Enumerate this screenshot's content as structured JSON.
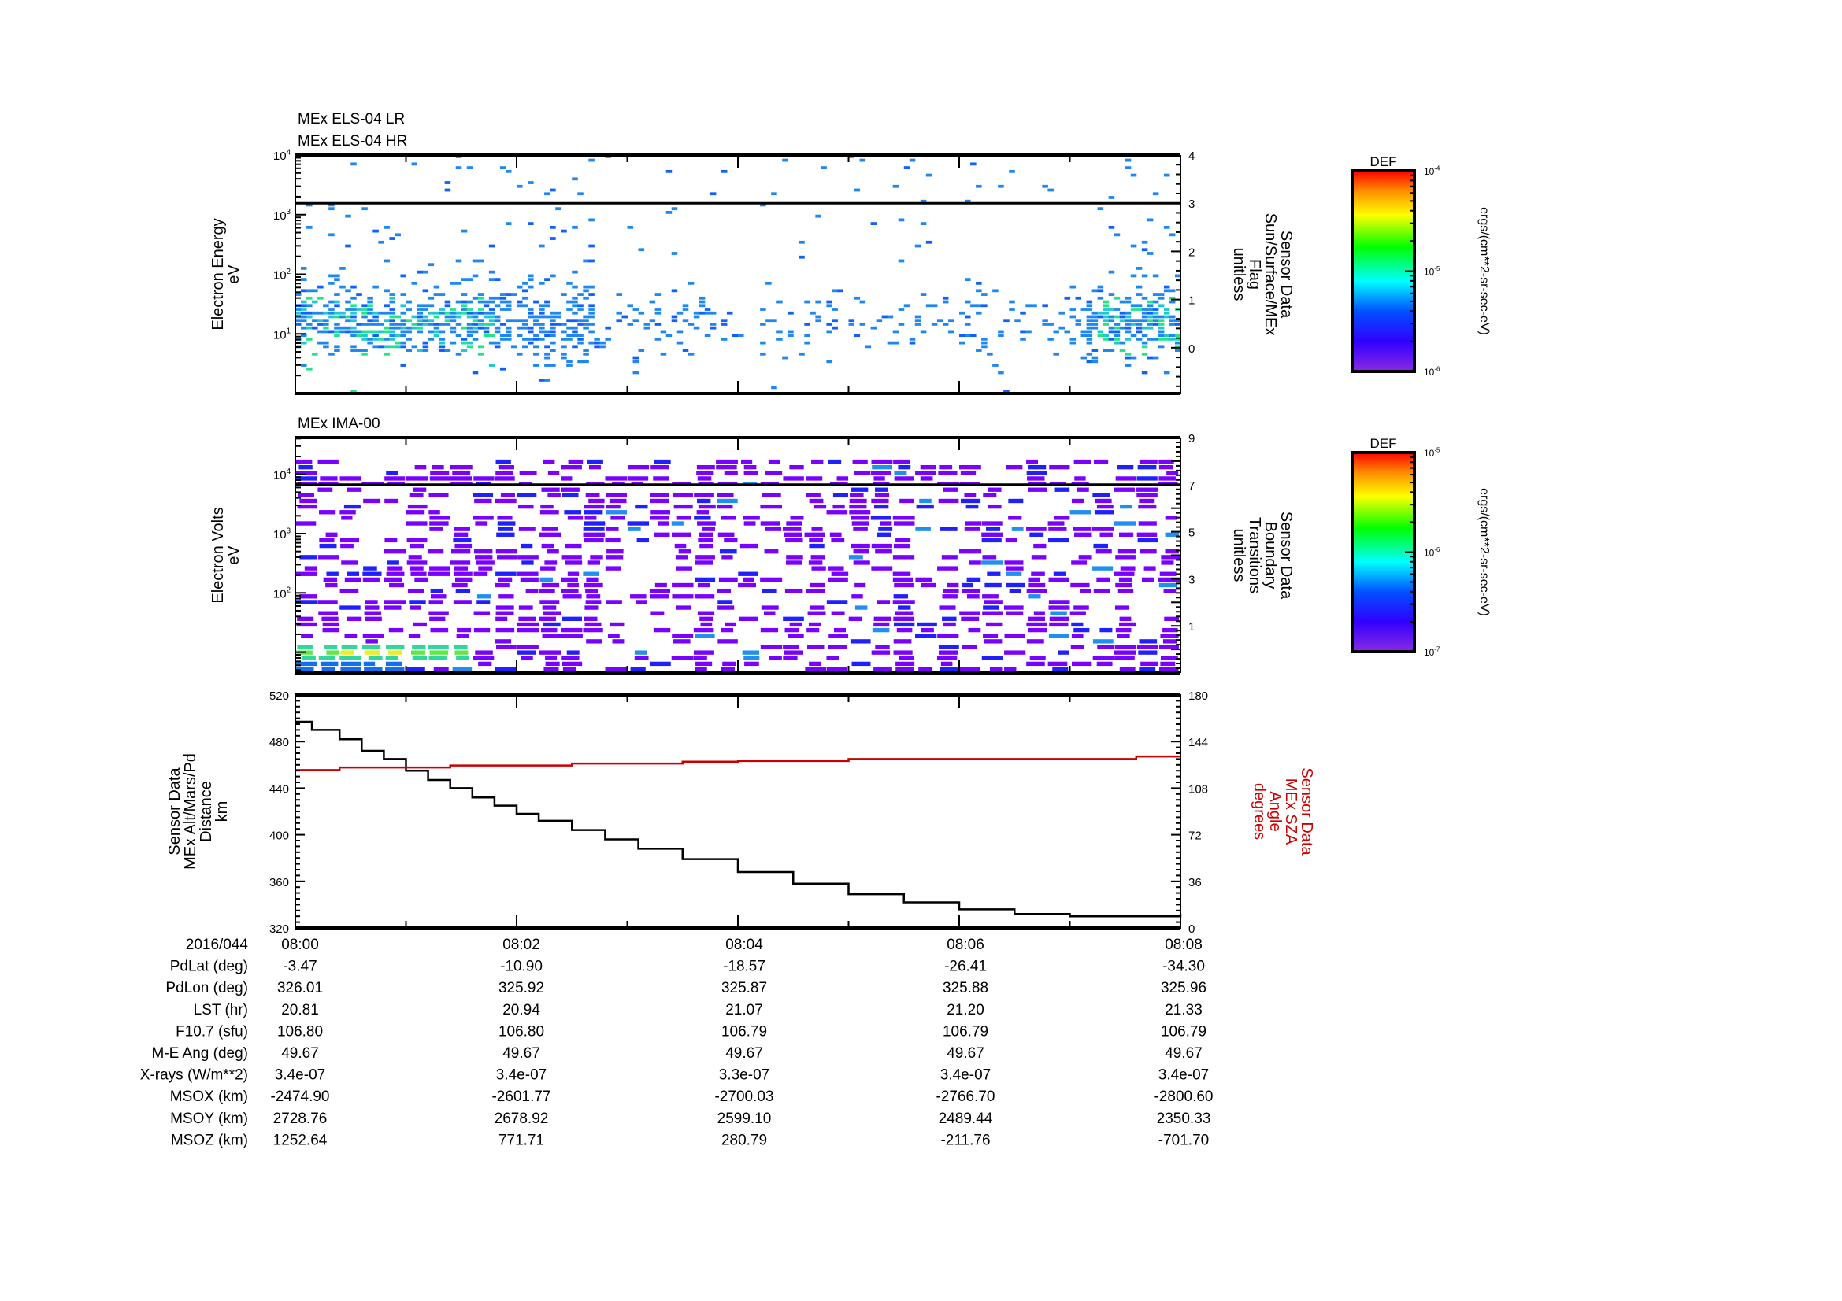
{
  "panels": [
    {
      "title_lines": [
        "MEx ELS-04 LR",
        "MEx ELS-04 HR"
      ],
      "left_label": [
        "Electron Energy",
        "eV"
      ],
      "left_log_range": [
        0,
        4
      ],
      "left_ticks": [
        {
          "base": "10",
          "exp": "1",
          "value": 1
        },
        {
          "base": "10",
          "exp": "2",
          "value": 2
        },
        {
          "base": "10",
          "exp": "3",
          "value": 3
        },
        {
          "base": "10",
          "exp": "4",
          "value": 4
        }
      ],
      "right_label": [
        "Sensor Data",
        "Sun/Surface/MEx",
        "Flag",
        "unitless"
      ],
      "right_range": [
        -0.95,
        4
      ],
      "right_ticks": [
        0,
        1,
        2,
        3,
        4
      ],
      "flag_value": 3,
      "colorbar": {
        "label": "DEF",
        "ticks": [
          {
            "base": "10",
            "exp": "-4"
          },
          {
            "base": "10",
            "exp": "-5"
          },
          {
            "base": "10",
            "exp": "-6"
          }
        ],
        "units": "ergs/(cm**2-sr-sec-eV)"
      }
    },
    {
      "title_lines": [
        "MEx IMA-00"
      ],
      "left_label": [
        "Electron Volts",
        "eV"
      ],
      "left_log_range": [
        0.65,
        4.62
      ],
      "left_ticks": [
        {
          "base": "10",
          "exp": "2",
          "value": 2
        },
        {
          "base": "10",
          "exp": "3",
          "value": 3
        },
        {
          "base": "10",
          "exp": "4",
          "value": 4
        }
      ],
      "right_label": [
        "Sensor Data",
        "Boundary",
        "Transitions",
        "unitless"
      ],
      "right_range": [
        -1,
        9
      ],
      "right_ticks": [
        1,
        3,
        5,
        7,
        9
      ],
      "flag_value": 7,
      "colorbar": {
        "label": "DEF",
        "ticks": [
          {
            "base": "10",
            "exp": "-5"
          },
          {
            "base": "10",
            "exp": "-6"
          },
          {
            "base": "10",
            "exp": "-7"
          }
        ],
        "units": "ergs/(cm**2-sr-sec-eV)"
      }
    }
  ],
  "chart_data": {
    "type": "line",
    "x_minutes_after_0800": [
      0,
      0.15,
      0.4,
      0.6,
      0.8,
      1.0,
      1.2,
      1.4,
      1.6,
      1.8,
      2.0,
      2.2,
      2.5,
      2.8,
      3.1,
      3.5,
      4.0,
      4.5,
      5.0,
      5.5,
      6.0,
      6.5,
      7.0,
      7.6,
      8.0
    ],
    "series": [
      {
        "name": "MEx Alt/Mars/Pd Distance (km)",
        "axis": "left",
        "color": "#000000",
        "values": [
          497,
          490,
          482,
          472,
          465,
          455,
          447,
          440,
          432,
          425,
          418,
          412,
          404,
          396,
          388,
          379,
          368,
          358,
          349,
          342,
          336,
          332,
          330,
          330,
          332
        ]
      },
      {
        "name": "MEx SZA Angle (degrees)",
        "axis": "right",
        "color": "#cc0000",
        "values": [
          122,
          122,
          124,
          124,
          124,
          124,
          124,
          125.5,
          125.5,
          125.5,
          125.5,
          125.5,
          127,
          127,
          127,
          128.5,
          129,
          129,
          130.5,
          130.5,
          130.5,
          130.5,
          130.5,
          132.5,
          132.5
        ]
      }
    ],
    "left_label": [
      "Sensor Data",
      "MEx Alt/Mars/Pd",
      "Distance",
      "km"
    ],
    "right_label": [
      "Sensor Data",
      "MEx SZA",
      "Angle",
      "degrees"
    ],
    "ylim_left": [
      320,
      520
    ],
    "yticks_left": [
      320,
      360,
      400,
      440,
      480,
      520
    ],
    "ylim_right": [
      0,
      180
    ],
    "yticks_right": [
      0,
      36,
      72,
      108,
      144,
      180
    ],
    "xlim_minutes": [
      0,
      8
    ]
  },
  "table": {
    "header": {
      "label": "2016/044",
      "values": [
        "08:00",
        "08:02",
        "08:04",
        "08:06",
        "08:08"
      ]
    },
    "rows": [
      {
        "label": "PdLat (deg)",
        "values": [
          "-3.47",
          "-10.90",
          "-18.57",
          "-26.41",
          "-34.30"
        ]
      },
      {
        "label": "PdLon (deg)",
        "values": [
          "326.01",
          "325.92",
          "325.87",
          "325.88",
          "325.96"
        ]
      },
      {
        "label": "LST (hr)",
        "values": [
          "20.81",
          "20.94",
          "21.07",
          "21.20",
          "21.33"
        ]
      },
      {
        "label": "F10.7 (sfu)",
        "values": [
          "106.80",
          "106.80",
          "106.79",
          "106.79",
          "106.79"
        ]
      },
      {
        "label": "M-E Ang (deg)",
        "values": [
          "49.67",
          "49.67",
          "49.67",
          "49.67",
          "49.67"
        ]
      },
      {
        "label": "X-rays (W/m**2)",
        "values": [
          "3.4e-07",
          "3.4e-07",
          "3.3e-07",
          "3.4e-07",
          "3.4e-07"
        ]
      },
      {
        "label": "MSOX (km)",
        "values": [
          "-2474.90",
          "-2601.77",
          "-2700.03",
          "-2766.70",
          "-2800.60"
        ]
      },
      {
        "label": "MSOY (km)",
        "values": [
          "2728.76",
          "2678.92",
          "2599.10",
          "2489.44",
          "2350.33"
        ]
      },
      {
        "label": "MSOZ (km)",
        "values": [
          "1252.64",
          "771.71",
          "280.79",
          "-211.76",
          "-701.70"
        ]
      }
    ]
  },
  "colors": {
    "sza": "#cc0000",
    "altitude": "#000000",
    "ima_purple": "#7a00ff",
    "els_blue": "#1e88f0"
  }
}
